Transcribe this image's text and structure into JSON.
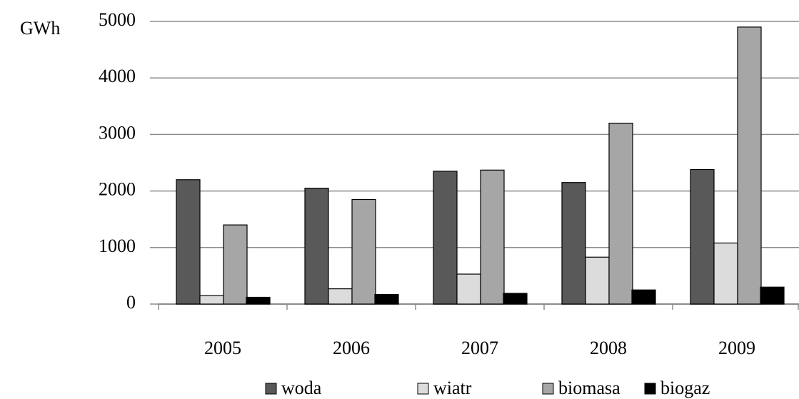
{
  "chart_data": {
    "type": "bar",
    "unit_label": "GWh",
    "categories": [
      "2005",
      "2006",
      "2007",
      "2008",
      "2009"
    ],
    "series": [
      {
        "name": "woda",
        "color": "#595959",
        "values": [
          2200,
          2050,
          2350,
          2150,
          2380
        ]
      },
      {
        "name": "wiatr",
        "color": "#dcdcdc",
        "values": [
          150,
          270,
          530,
          830,
          1080
        ]
      },
      {
        "name": "biomasa",
        "color": "#a6a6a6",
        "values": [
          1400,
          1850,
          2370,
          3200,
          4900
        ]
      },
      {
        "name": "biogaz",
        "color": "#000000",
        "values": [
          120,
          170,
          190,
          250,
          300
        ]
      }
    ],
    "ylim": [
      0,
      5000
    ],
    "yticks": [
      0,
      1000,
      2000,
      3000,
      4000,
      5000
    ],
    "grid": true,
    "legend": "bottom"
  }
}
